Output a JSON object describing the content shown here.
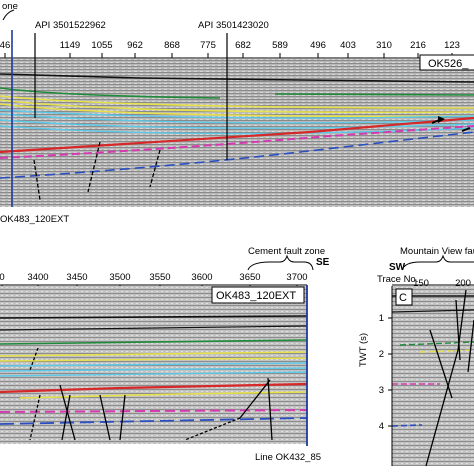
{
  "top_panel": {
    "zone_label_fragment": "one",
    "well_1": "API 3501522962",
    "well_2": "API 3501423020",
    "trace_ticks": [
      "46",
      "1149",
      "1055",
      "962",
      "868",
      "775",
      "682",
      "589",
      "496",
      "403",
      "310",
      "216",
      "123"
    ],
    "line_label": "OK526_",
    "bottom_line_label": "OK483_120EXT"
  },
  "bottom_left_panel": {
    "fault_zone_label": "Cement fault zone",
    "direction_label": "SE",
    "trace_ticks": [
      "0",
      "3400",
      "3450",
      "3500",
      "3550",
      "3600",
      "3650",
      "3700"
    ],
    "line_label": "OK483_120EXT",
    "bottom_line_label": "Line OK432_85"
  },
  "bottom_right_panel": {
    "fault_label": "Mountain View fau",
    "direction_label": "SW",
    "trace_label": "Trace No.",
    "trace_ticks": [
      "150",
      "200"
    ],
    "panel_letter": "C",
    "y_axis_label": "TWT (s)",
    "y_ticks": [
      "1",
      "2",
      "3",
      "4"
    ]
  },
  "colors": {
    "black_horizon": "#111111",
    "green_horizon": "#1f8a3a",
    "yellow_horizon": "#e6e04a",
    "cyan_horizon": "#5bc8e8",
    "red_horizon": "#d62828",
    "magenta_horizon": "#d63ab0",
    "blue_horizon": "#2b4fc0",
    "well_line": "#1e3a9e"
  }
}
